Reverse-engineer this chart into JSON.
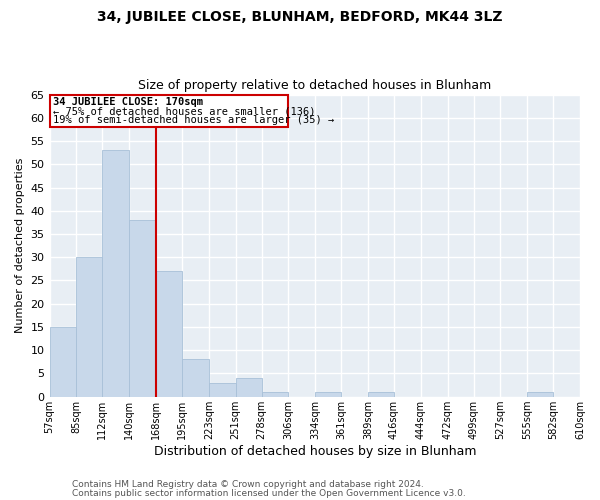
{
  "title": "34, JUBILEE CLOSE, BLUNHAM, BEDFORD, MK44 3LZ",
  "subtitle": "Size of property relative to detached houses in Blunham",
  "xlabel": "Distribution of detached houses by size in Blunham",
  "ylabel": "Number of detached properties",
  "bin_edges": [
    57,
    85,
    112,
    140,
    168,
    195,
    223,
    251,
    278,
    306,
    334,
    361,
    389,
    416,
    444,
    472,
    499,
    527,
    555,
    582,
    610
  ],
  "bar_heights": [
    15,
    30,
    53,
    38,
    27,
    8,
    3,
    4,
    1,
    0,
    1,
    0,
    1,
    0,
    0,
    0,
    0,
    0,
    1,
    0
  ],
  "bar_color": "#c8d8ea",
  "bar_edge_color": "#a8c0d8",
  "vline_x": 168,
  "vline_color": "#cc0000",
  "ylim": [
    0,
    65
  ],
  "yticks": [
    0,
    5,
    10,
    15,
    20,
    25,
    30,
    35,
    40,
    45,
    50,
    55,
    60,
    65
  ],
  "annotation_title": "34 JUBILEE CLOSE: 170sqm",
  "annotation_line1": "← 75% of detached houses are smaller (136)",
  "annotation_line2": "19% of semi-detached houses are larger (35) →",
  "footer_line1": "Contains HM Land Registry data © Crown copyright and database right 2024.",
  "footer_line2": "Contains public sector information licensed under the Open Government Licence v3.0.",
  "background_color": "#ffffff",
  "plot_bg_color": "#e8eef4",
  "grid_color": "#ffffff",
  "tick_labels": [
    "57sqm",
    "85sqm",
    "112sqm",
    "140sqm",
    "168sqm",
    "195sqm",
    "223sqm",
    "251sqm",
    "278sqm",
    "306sqm",
    "334sqm",
    "361sqm",
    "389sqm",
    "416sqm",
    "444sqm",
    "472sqm",
    "499sqm",
    "527sqm",
    "555sqm",
    "582sqm",
    "610sqm"
  ]
}
